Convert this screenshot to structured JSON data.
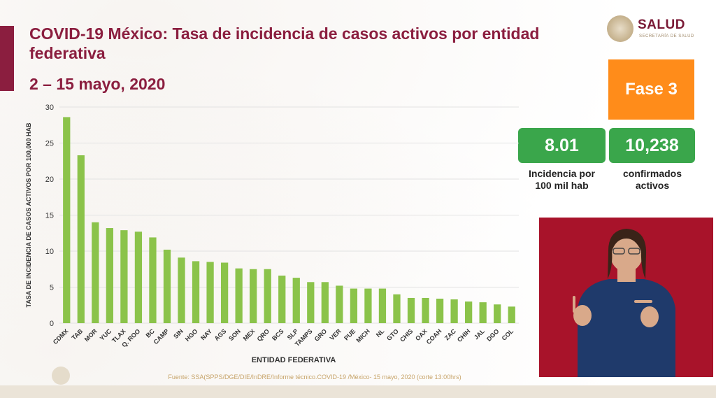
{
  "header": {
    "title": "COVID-19 México: Tasa de incidencia de casos activos por entidad federativa",
    "subtitle": "2 – 15 mayo, 2020"
  },
  "logo": {
    "name": "SALUD",
    "sub": "SECRETARÍA DE SALUD"
  },
  "fase": {
    "label": "Fase 3",
    "color": "#ff8c1a"
  },
  "stats": {
    "incidence": {
      "value": "8.01",
      "label_line1": "Incidencia por",
      "label_line2": "100 mil hab"
    },
    "confirmed": {
      "value": "10,238",
      "label_line1": "confirmados",
      "label_line2": "activos"
    }
  },
  "footer": {
    "source": "Fuente: SSA(SPPS/DGE/DIE/InDRE/Informe técnico.COVID-19 /México- 15 mayo, 2020 (corte 13:00hrs)"
  },
  "colors": {
    "accent": "#8b1e3f",
    "bar": "#8bc34a",
    "stat_green": "#3aa64b"
  },
  "chart_data": {
    "type": "bar",
    "title": "",
    "xlabel": "ENTIDAD FEDERATIVA",
    "ylabel": "TASA DE INCIDENCIA DE CASOS ACTIVOS  POR 100,000 HAB",
    "ylim": [
      0,
      30
    ],
    "yticks": [
      0,
      5,
      10,
      15,
      20,
      25,
      30
    ],
    "grid": true,
    "categories": [
      "CDMX",
      "TAB",
      "MOR",
      "YUC",
      "TLAX",
      "Q. ROO",
      "BC",
      "CAMP",
      "SIN",
      "HGO",
      "NAY",
      "AGS",
      "SON",
      "MEX",
      "QRO",
      "BCS",
      "SLP",
      "TAMPS",
      "GRO",
      "VER",
      "PUE",
      "MICH",
      "NL",
      "GTO",
      "CHIS",
      "OAX",
      "COAH",
      "ZAC",
      "CHIH",
      "JAL",
      "DGO",
      "COL"
    ],
    "values": [
      28.6,
      23.3,
      14.0,
      13.2,
      12.9,
      12.7,
      11.9,
      10.2,
      9.1,
      8.6,
      8.5,
      8.4,
      7.6,
      7.5,
      7.5,
      6.6,
      6.3,
      5.7,
      5.7,
      5.2,
      4.8,
      4.8,
      4.8,
      4.0,
      3.5,
      3.5,
      3.4,
      3.3,
      3.0,
      2.9,
      2.6,
      2.3
    ]
  }
}
